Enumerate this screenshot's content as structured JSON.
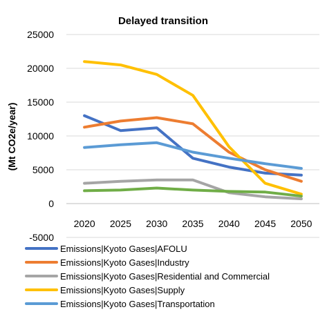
{
  "chart_data": {
    "type": "line",
    "title": "Delayed transition",
    "ylabel": "(Mt CO2e/year)",
    "xlabel": "",
    "x": [
      "2020",
      "2025",
      "2030",
      "2035",
      "2040",
      "2045",
      "2050"
    ],
    "ylim": [
      -5000,
      25000
    ],
    "yticks": [
      -5000,
      0,
      5000,
      10000,
      15000,
      20000,
      25000
    ],
    "grid": true,
    "legend_position": "bottom",
    "series": [
      {
        "name": "Emissions|Kyoto Gases|AFOLU",
        "color": "#4472c4",
        "values": [
          13000,
          10800,
          11200,
          6700,
          5400,
          4500,
          4200
        ]
      },
      {
        "name": "Emissions|Kyoto Gases|Industry",
        "color": "#ed7d31",
        "values": [
          11300,
          12200,
          12700,
          11800,
          7600,
          5000,
          3300
        ]
      },
      {
        "name": "Emissions|Kyoto Gases|Residential and Commercial",
        "color": "#a5a5a5",
        "values": [
          3000,
          3300,
          3500,
          3500,
          1600,
          1000,
          700
        ]
      },
      {
        "name": "Emissions|Kyoto Gases|Supply",
        "color": "#ffc000",
        "values": [
          21000,
          20500,
          19100,
          16000,
          8400,
          3000,
          1400
        ]
      },
      {
        "name": "Emissions|Kyoto Gases|Transportation",
        "color": "#5b9bd5",
        "values": [
          8300,
          8700,
          9000,
          7600,
          6700,
          5900,
          5200
        ]
      },
      {
        "color": "#70ad47",
        "values": [
          1900,
          2000,
          2300,
          2000,
          1800,
          1700,
          1100
        ]
      }
    ]
  }
}
